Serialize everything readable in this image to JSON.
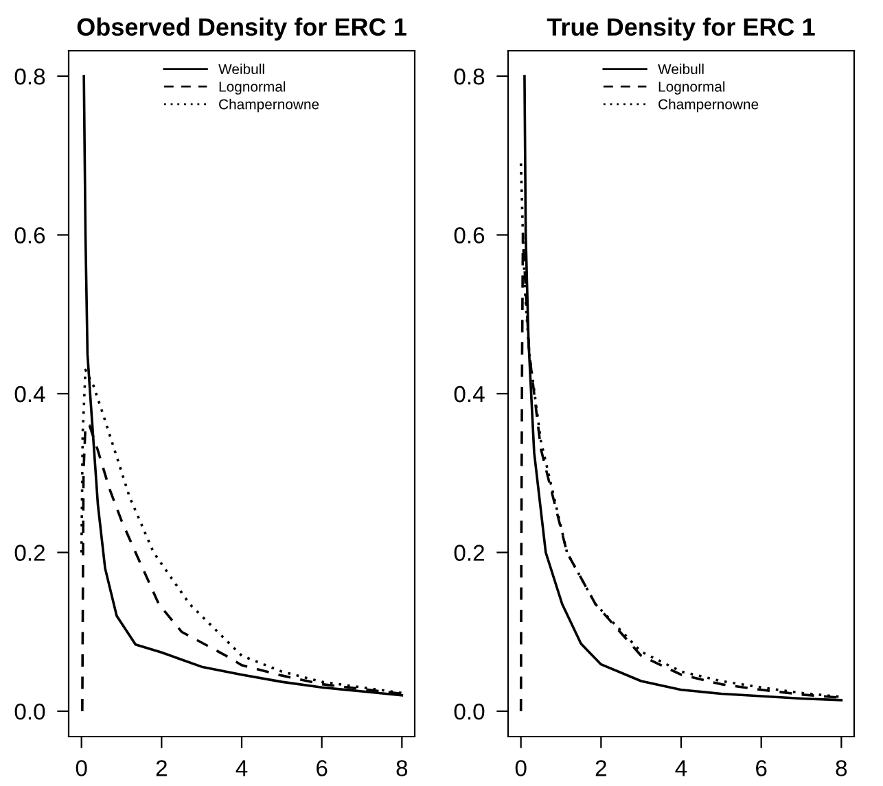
{
  "chart_data": [
    {
      "type": "line",
      "title": "Observed Density for ERC 1",
      "xlim": [
        -0.32,
        8.32
      ],
      "ylim": [
        -0.032,
        0.832
      ],
      "xticks": [
        0,
        2,
        4,
        6,
        8
      ],
      "yticks": [
        {
          "value": 0,
          "label": "0.0"
        },
        0.2,
        0.4,
        0.6,
        0.8
      ],
      "legend": "top",
      "grid": false,
      "series": [
        {
          "name": "Weibull",
          "color": "#000000",
          "line_style": "solid",
          "x": [
            0.06,
            0.1,
            0.15,
            0.23,
            0.41,
            0.59,
            0.88,
            1.35,
            2,
            3,
            4,
            5,
            6,
            7,
            8
          ],
          "values": [
            0.8,
            0.6,
            0.45,
            0.39,
            0.26,
            0.18,
            0.12,
            0.084,
            0.074,
            0.056,
            0.046,
            0.037,
            0.03,
            0.025,
            0.02
          ]
        },
        {
          "name": "Lognormal",
          "color": "#000000",
          "line_style": "dashed",
          "x": [
            0.02,
            0.03,
            0.05,
            0.1,
            0.2,
            0.4,
            0.7,
            1.0,
            1.35,
            1.93,
            2.5,
            3.57,
            4,
            5,
            6,
            8
          ],
          "values": [
            0,
            0.1,
            0.3,
            0.36,
            0.36,
            0.33,
            0.28,
            0.24,
            0.2,
            0.135,
            0.1,
            0.071,
            0.058,
            0.045,
            0.034,
            0.022
          ]
        },
        {
          "name": "Champernowne",
          "color": "#000000",
          "line_style": "dotted",
          "x": [
            0,
            0.03,
            0.1,
            0.3,
            0.5,
            0.82,
            1.2,
            1.8,
            2.7,
            4,
            5,
            6,
            8
          ],
          "values": [
            0.2,
            0.35,
            0.43,
            0.41,
            0.38,
            0.33,
            0.27,
            0.2,
            0.135,
            0.07,
            0.05,
            0.037,
            0.023
          ]
        }
      ]
    },
    {
      "type": "line",
      "title": "True Density for ERC 1",
      "xlim": [
        -0.32,
        8.32
      ],
      "ylim": [
        -0.032,
        0.832
      ],
      "xticks": [
        0,
        2,
        4,
        6,
        8
      ],
      "yticks": [
        {
          "value": 0,
          "label": "0.0"
        },
        0.2,
        0.4,
        0.6,
        0.8
      ],
      "legend": "top",
      "grid": false,
      "series": [
        {
          "name": "Weibull",
          "color": "#000000",
          "line_style": "solid",
          "x": [
            0.09,
            0.12,
            0.19,
            0.33,
            0.62,
            1.03,
            1.5,
            2,
            3,
            4,
            5,
            6,
            7,
            8
          ],
          "values": [
            0.8,
            0.6,
            0.466,
            0.326,
            0.2,
            0.135,
            0.085,
            0.059,
            0.038,
            0.027,
            0.022,
            0.019,
            0.016,
            0.014
          ]
        },
        {
          "name": "Lognormal",
          "color": "#000000",
          "line_style": "dashed",
          "x": [
            0.0,
            0.01,
            0.03,
            0.05,
            0.1,
            0.21,
            0.5,
            1.15,
            1.86,
            3,
            4,
            5,
            6,
            7,
            8
          ],
          "values": [
            0,
            0.2,
            0.45,
            0.6,
            0.55,
            0.45,
            0.33,
            0.2,
            0.135,
            0.07,
            0.046,
            0.034,
            0.027,
            0.021,
            0.017
          ]
        },
        {
          "name": "Champernowne",
          "color": "#000000",
          "line_style": "dotted",
          "x": [
            0,
            0.05,
            0.1,
            0.21,
            0.5,
            1.15,
            1.86,
            3,
            4,
            5,
            6,
            7,
            8
          ],
          "values": [
            0.69,
            0.6,
            0.53,
            0.45,
            0.34,
            0.2,
            0.135,
            0.075,
            0.05,
            0.038,
            0.03,
            0.023,
            0.018
          ]
        }
      ]
    }
  ]
}
